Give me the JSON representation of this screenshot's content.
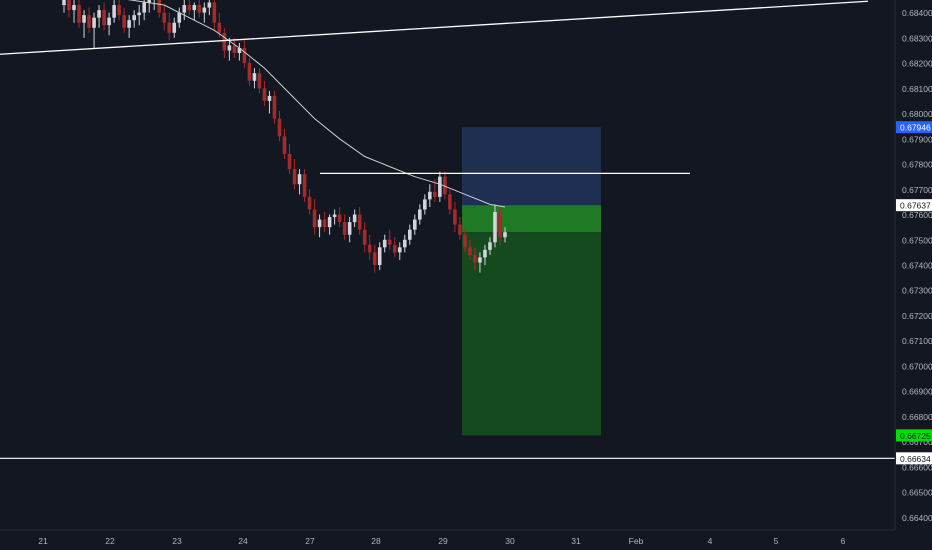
{
  "chart_data": {
    "type": "candlestick",
    "symbol": "",
    "x_ticks": [
      "21",
      "22",
      "23",
      "24",
      "27",
      "28",
      "29",
      "30",
      "31",
      "Feb",
      "4",
      "5",
      "6"
    ],
    "y_ticks": [
      "0.68400",
      "0.68300",
      "0.68200",
      "0.68100",
      "0.68000",
      "0.67900",
      "0.67800",
      "0.67700",
      "0.67600",
      "0.67500",
      "0.67400",
      "0.67300",
      "0.67200",
      "0.67100",
      "0.67000",
      "0.66900",
      "0.66800",
      "0.66700",
      "0.66600",
      "0.66500",
      "0.66400"
    ],
    "ylim": [
      0.6635,
      0.6845
    ],
    "price_labels": {
      "target_upper": "0.67946",
      "current": "0.67637",
      "take_profit": "0.66725",
      "support": "0.66634"
    },
    "colors": {
      "background": "#131722",
      "candle_up": "#d1d4dc",
      "candle_down": "#a52a2a",
      "ma_line": "#cfcfcf",
      "risk_zone": "#1e2f52",
      "reward_zone": "#154a1e",
      "reward_zone_bright": "#1f7a25",
      "label_blue": "#2962ff",
      "label_green": "#00e000"
    },
    "position_tool": {
      "type": "short",
      "entry": 0.67637,
      "stop": 0.67946,
      "target": 0.66725,
      "current": 0.6753
    },
    "horizontal_lines": [
      0.67763,
      0.66634
    ],
    "trendline": {
      "from": {
        "x_index": 0,
        "price": 0.68235
      },
      "to": {
        "x_index": 13.3,
        "price": 0.68445
      }
    },
    "candles": [
      [
        0.6843,
        0.6847,
        0.684,
        0.6845
      ],
      [
        0.6845,
        0.6848,
        0.6838,
        0.6841
      ],
      [
        0.6841,
        0.6846,
        0.6836,
        0.6843
      ],
      [
        0.6843,
        0.6845,
        0.6834,
        0.6836
      ],
      [
        0.6836,
        0.6841,
        0.683,
        0.6839
      ],
      [
        0.6839,
        0.6842,
        0.6832,
        0.6834
      ],
      [
        0.6834,
        0.684,
        0.6826,
        0.6838
      ],
      [
        0.6838,
        0.6843,
        0.6834,
        0.6841
      ],
      [
        0.6841,
        0.6844,
        0.6833,
        0.6835
      ],
      [
        0.6835,
        0.684,
        0.6831,
        0.6838
      ],
      [
        0.6838,
        0.6845,
        0.6836,
        0.6843
      ],
      [
        0.6843,
        0.6846,
        0.6837,
        0.6839
      ],
      [
        0.6839,
        0.6842,
        0.6832,
        0.6834
      ],
      [
        0.6834,
        0.6839,
        0.683,
        0.6837
      ],
      [
        0.6837,
        0.6841,
        0.6834,
        0.6839
      ],
      [
        0.6839,
        0.6843,
        0.6835,
        0.684
      ],
      [
        0.684,
        0.6846,
        0.6837,
        0.6844
      ],
      [
        0.6844,
        0.6848,
        0.684,
        0.6845
      ],
      [
        0.6845,
        0.6849,
        0.6841,
        0.6846
      ],
      [
        0.6846,
        0.6848,
        0.6838,
        0.684
      ],
      [
        0.684,
        0.6843,
        0.6833,
        0.6836
      ],
      [
        0.6836,
        0.684,
        0.6829,
        0.6832
      ],
      [
        0.6832,
        0.6838,
        0.683,
        0.6836
      ],
      [
        0.6836,
        0.6842,
        0.6834,
        0.684
      ],
      [
        0.684,
        0.6845,
        0.6837,
        0.6843
      ],
      [
        0.6843,
        0.6846,
        0.6839,
        0.6841
      ],
      [
        0.6841,
        0.6844,
        0.6837,
        0.6843
      ],
      [
        0.6843,
        0.6846,
        0.6838,
        0.684
      ],
      [
        0.684,
        0.6844,
        0.6836,
        0.6842
      ],
      [
        0.6842,
        0.6846,
        0.6839,
        0.6844
      ],
      [
        0.6844,
        0.6846,
        0.6833,
        0.6836
      ],
      [
        0.6836,
        0.684,
        0.683,
        0.6832
      ],
      [
        0.6832,
        0.6834,
        0.6822,
        0.6825
      ],
      [
        0.6825,
        0.683,
        0.6821,
        0.6827
      ],
      [
        0.6827,
        0.683,
        0.6822,
        0.6824
      ],
      [
        0.6824,
        0.6828,
        0.6821,
        0.6826
      ],
      [
        0.6826,
        0.6829,
        0.6818,
        0.682
      ],
      [
        0.682,
        0.6822,
        0.6811,
        0.6813
      ],
      [
        0.6813,
        0.6818,
        0.681,
        0.6816
      ],
      [
        0.6816,
        0.6818,
        0.6808,
        0.681
      ],
      [
        0.681,
        0.6813,
        0.6803,
        0.6805
      ],
      [
        0.6805,
        0.6809,
        0.68,
        0.6807
      ],
      [
        0.6807,
        0.6809,
        0.6796,
        0.6798
      ],
      [
        0.6798,
        0.6801,
        0.6789,
        0.6791
      ],
      [
        0.6791,
        0.6794,
        0.6782,
        0.6784
      ],
      [
        0.6784,
        0.6788,
        0.6776,
        0.6778
      ],
      [
        0.6778,
        0.6782,
        0.677,
        0.6772
      ],
      [
        0.6772,
        0.6778,
        0.6768,
        0.6776
      ],
      [
        0.6776,
        0.6778,
        0.6765,
        0.6767
      ],
      [
        0.6767,
        0.677,
        0.676,
        0.6762
      ],
      [
        0.6762,
        0.6766,
        0.6752,
        0.6755
      ],
      [
        0.6755,
        0.676,
        0.6751,
        0.6758
      ],
      [
        0.6758,
        0.6761,
        0.6753,
        0.6755
      ],
      [
        0.6755,
        0.676,
        0.6752,
        0.6759
      ],
      [
        0.6759,
        0.6762,
        0.6756,
        0.676
      ],
      [
        0.676,
        0.6763,
        0.6755,
        0.6757
      ],
      [
        0.6757,
        0.676,
        0.675,
        0.6752
      ],
      [
        0.6752,
        0.6759,
        0.6749,
        0.6757
      ],
      [
        0.6757,
        0.6762,
        0.6755,
        0.676
      ],
      [
        0.676,
        0.6763,
        0.6752,
        0.6754
      ],
      [
        0.6754,
        0.6757,
        0.6745,
        0.6748
      ],
      [
        0.6748,
        0.6752,
        0.6742,
        0.6745
      ],
      [
        0.6745,
        0.6748,
        0.6737,
        0.674
      ],
      [
        0.674,
        0.6749,
        0.6738,
        0.6747
      ],
      [
        0.6747,
        0.6752,
        0.6745,
        0.675
      ],
      [
        0.675,
        0.6754,
        0.6746,
        0.6748
      ],
      [
        0.6748,
        0.6751,
        0.6743,
        0.6745
      ],
      [
        0.6745,
        0.6749,
        0.6742,
        0.6747
      ],
      [
        0.6747,
        0.6752,
        0.6745,
        0.675
      ],
      [
        0.675,
        0.6756,
        0.6748,
        0.6754
      ],
      [
        0.6754,
        0.676,
        0.6752,
        0.6758
      ],
      [
        0.6758,
        0.6764,
        0.6756,
        0.6762
      ],
      [
        0.6762,
        0.6768,
        0.676,
        0.6766
      ],
      [
        0.6766,
        0.6772,
        0.6763,
        0.6769
      ],
      [
        0.6769,
        0.6774,
        0.6765,
        0.6767
      ],
      [
        0.6767,
        0.6777,
        0.6765,
        0.6775
      ],
      [
        0.6775,
        0.6777,
        0.6766,
        0.6768
      ],
      [
        0.6768,
        0.677,
        0.676,
        0.6762
      ],
      [
        0.6762,
        0.6765,
        0.6753,
        0.6756
      ],
      [
        0.6756,
        0.6759,
        0.675,
        0.6752
      ],
      [
        0.6752,
        0.6755,
        0.6745,
        0.6747
      ],
      [
        0.6747,
        0.675,
        0.6742,
        0.6744
      ],
      [
        0.6744,
        0.6747,
        0.6738,
        0.6741
      ],
      [
        0.6741,
        0.6745,
        0.6737,
        0.6743
      ],
      [
        0.6743,
        0.6748,
        0.674,
        0.6746
      ],
      [
        0.6746,
        0.6751,
        0.6744,
        0.6749
      ],
      [
        0.6749,
        0.6764,
        0.6747,
        0.6761
      ],
      [
        0.6761,
        0.6763,
        0.6748,
        0.6751
      ],
      [
        0.6751,
        0.6755,
        0.6749,
        0.6753
      ]
    ],
    "ma_line": [
      [
        0,
        0.6847
      ],
      [
        10,
        0.6846
      ],
      [
        20,
        0.6843
      ],
      [
        25,
        0.6838
      ],
      [
        30,
        0.6833
      ],
      [
        35,
        0.6826
      ],
      [
        40,
        0.6818
      ],
      [
        45,
        0.6808
      ],
      [
        50,
        0.6798
      ],
      [
        55,
        0.679
      ],
      [
        60,
        0.6783
      ],
      [
        65,
        0.6779
      ],
      [
        70,
        0.6775
      ],
      [
        75,
        0.6772
      ],
      [
        80,
        0.6768
      ],
      [
        85,
        0.6764
      ],
      [
        88,
        0.6763
      ]
    ]
  }
}
